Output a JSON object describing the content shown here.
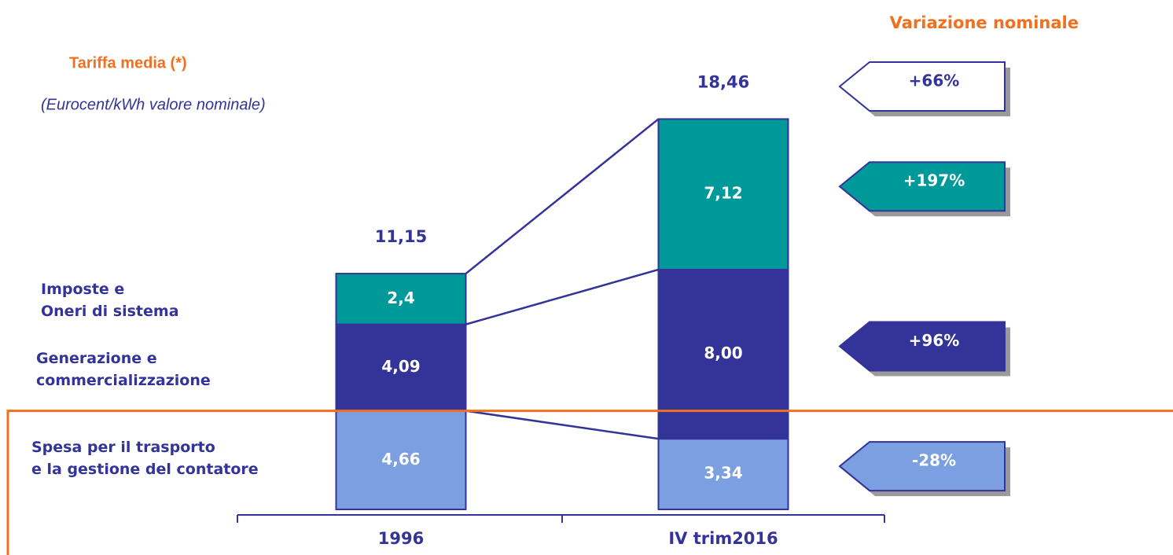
{
  "chart_data": {
    "type": "stacked_bar",
    "title": "Tariffa media (*)",
    "subtitle": "(Eurocent/kWh valore nominale)",
    "change_title": "Variazione nominale",
    "categories": [
      "1996",
      "IV trim2016"
    ],
    "ylim": [
      0,
      20
    ],
    "series": [
      {
        "name": "Spesa per il trasporto\ne la gestione del contatore",
        "color": "#7b9fe0",
        "values": [
          4.66,
          3.34
        ],
        "value_labels": [
          "4,66",
          "3,34"
        ],
        "change": -28,
        "change_label": "-28%"
      },
      {
        "name": "Generazione e\ncommercializzazione",
        "color": "#333399",
        "values": [
          4.09,
          8.0
        ],
        "value_labels": [
          "4,09",
          "8,00"
        ],
        "change": 96,
        "change_label": "+96%"
      },
      {
        "name": "Imposte e\nOneri di sistema",
        "color": "#009999",
        "values": [
          2.4,
          7.12
        ],
        "value_labels": [
          "2,4",
          "7,12"
        ],
        "change": 197,
        "change_label": "+197%"
      }
    ],
    "totals": [
      11.15,
      18.46
    ],
    "total_labels": [
      "11,15",
      "18,46"
    ],
    "total_change": 66,
    "total_change_label": "+66%"
  }
}
